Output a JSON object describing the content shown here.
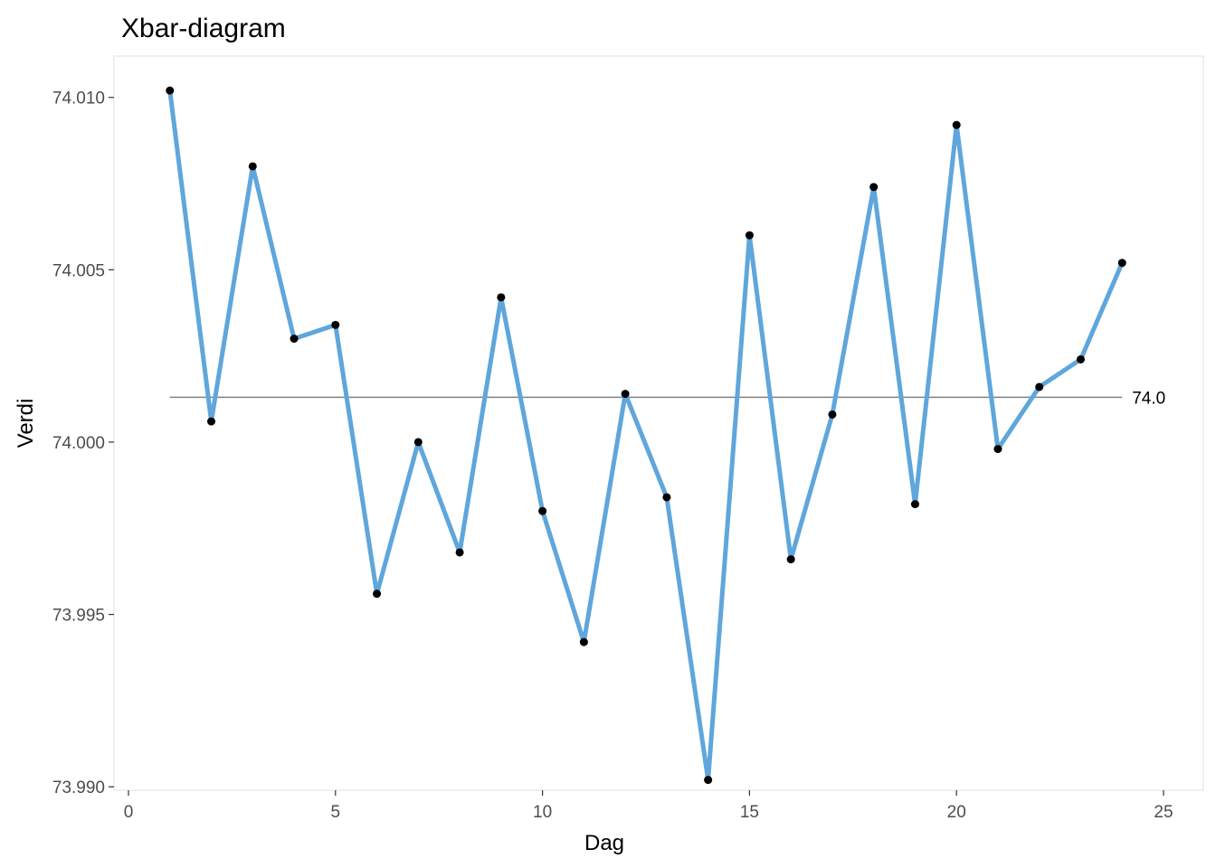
{
  "chart_data": {
    "type": "line",
    "title": "Xbar-diagram",
    "xlabel": "Dag",
    "ylabel": "Verdi",
    "xlim": [
      0,
      25
    ],
    "ylim": [
      73.9899,
      74.0112
    ],
    "x_ticks": [
      0,
      5,
      10,
      15,
      20,
      25
    ],
    "y_ticks": [
      73.99,
      73.995,
      74.0,
      74.005,
      74.01
    ],
    "y_tick_labels": [
      "73.990",
      "73.995",
      "74.000",
      "74.005",
      "74.010"
    ],
    "grid": false,
    "series": [
      {
        "x": [
          1,
          2,
          3,
          4,
          5,
          6,
          7,
          8,
          9,
          10,
          11,
          12,
          13,
          14,
          15,
          16,
          17,
          18,
          19,
          20,
          21,
          22,
          23,
          24
        ],
        "values": [
          74.0102,
          74.0006,
          74.008,
          74.003,
          74.0034,
          73.9956,
          74.0,
          73.9968,
          74.0042,
          73.998,
          73.9942,
          74.0014,
          73.9984,
          73.9902,
          74.006,
          73.9966,
          74.0008,
          74.0074,
          73.9982,
          74.0092,
          73.9998,
          74.0016,
          74.0024,
          74.0052
        ]
      }
    ],
    "reference_line": {
      "value": 74.0013,
      "label": "74.0",
      "x_start": 1,
      "x_end": 24
    },
    "colors": {
      "line": "#5fa6dc",
      "point": "#000000",
      "reference": "#808080",
      "panel_border": "#ebebeb"
    }
  }
}
